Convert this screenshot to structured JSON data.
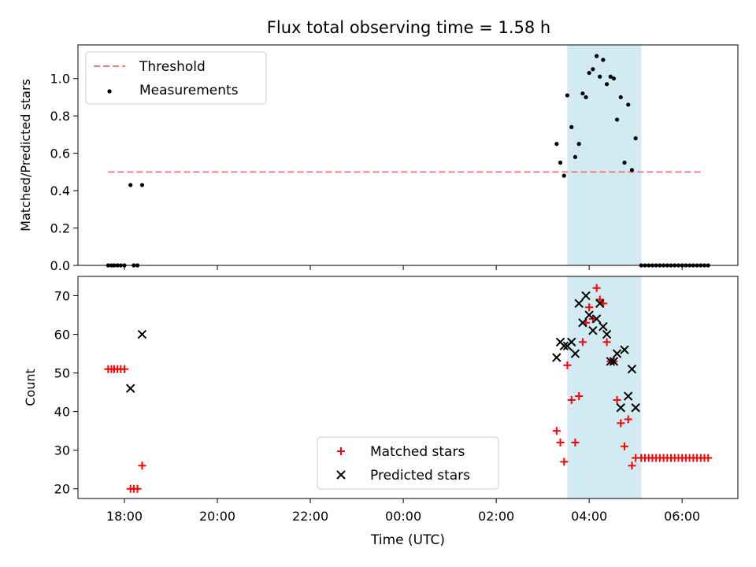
{
  "figure": {
    "title": "Flux total observing time = 1.58 h"
  },
  "chart_data": [
    {
      "type": "scatter",
      "panel": "top",
      "ylabel": "Matched/Predicted stars",
      "ylim": [
        0,
        1.18
      ],
      "yticks": [
        0.0,
        0.2,
        0.4,
        0.6,
        0.8,
        1.0
      ],
      "ytick_labels": [
        "0.0",
        "0.2",
        "0.4",
        "0.6",
        "0.8",
        "1.0"
      ],
      "xlim_hours": [
        17.0,
        31.2
      ],
      "shaded_span_hours": [
        27.53,
        29.12
      ],
      "shade_color": "#add8e6",
      "threshold": {
        "name": "Threshold",
        "value": 0.5,
        "x_range_hours": [
          17.65,
          30.45
        ],
        "color": "#f08080",
        "style": "dashed"
      },
      "legend": {
        "placement": "upper-left",
        "entries": [
          "Threshold",
          "Measurements"
        ]
      },
      "series": [
        {
          "name": "Measurements",
          "color": "#000000",
          "marker": "dot",
          "points": [
            [
              17.65,
              0.0
            ],
            [
              17.72,
              0.0
            ],
            [
              17.78,
              0.0
            ],
            [
              17.85,
              0.0
            ],
            [
              17.92,
              0.0
            ],
            [
              18.0,
              0.0
            ],
            [
              18.13,
              0.43
            ],
            [
              18.2,
              0.0
            ],
            [
              18.28,
              0.0
            ],
            [
              18.38,
              0.43
            ],
            [
              27.3,
              0.65
            ],
            [
              27.38,
              0.55
            ],
            [
              27.46,
              0.48
            ],
            [
              27.53,
              0.91
            ],
            [
              27.62,
              0.74
            ],
            [
              27.7,
              0.58
            ],
            [
              27.78,
              0.65
            ],
            [
              27.86,
              0.92
            ],
            [
              27.93,
              0.9
            ],
            [
              28.0,
              1.03
            ],
            [
              28.08,
              1.05
            ],
            [
              28.16,
              1.12
            ],
            [
              28.23,
              1.01
            ],
            [
              28.3,
              1.1
            ],
            [
              28.38,
              0.97
            ],
            [
              28.46,
              1.01
            ],
            [
              28.53,
              1.0
            ],
            [
              28.6,
              0.78
            ],
            [
              28.68,
              0.9
            ],
            [
              28.76,
              0.55
            ],
            [
              28.84,
              0.86
            ],
            [
              28.92,
              0.51
            ],
            [
              29.0,
              0.68
            ],
            [
              29.12,
              0.0
            ],
            [
              29.2,
              0.0
            ],
            [
              29.28,
              0.0
            ],
            [
              29.36,
              0.0
            ],
            [
              29.44,
              0.0
            ],
            [
              29.52,
              0.0
            ],
            [
              29.6,
              0.0
            ],
            [
              29.68,
              0.0
            ],
            [
              29.76,
              0.0
            ],
            [
              29.84,
              0.0
            ],
            [
              29.92,
              0.0
            ],
            [
              30.0,
              0.0
            ],
            [
              30.08,
              0.0
            ],
            [
              30.16,
              0.0
            ],
            [
              30.24,
              0.0
            ],
            [
              30.32,
              0.0
            ],
            [
              30.4,
              0.0
            ],
            [
              30.48,
              0.0
            ],
            [
              30.56,
              0.0
            ]
          ]
        }
      ]
    },
    {
      "type": "scatter",
      "panel": "bottom",
      "xlabel": "Time (UTC)",
      "ylabel": "Count",
      "ylim": [
        17.5,
        75
      ],
      "yticks": [
        20,
        30,
        40,
        50,
        60,
        70
      ],
      "ytick_labels": [
        "20",
        "30",
        "40",
        "50",
        "60",
        "70"
      ],
      "xlim_hours": [
        17.0,
        31.2
      ],
      "xticks_hours": [
        18,
        20,
        22,
        24,
        26,
        28,
        30
      ],
      "xtick_labels": [
        "18:00",
        "20:00",
        "22:00",
        "00:00",
        "02:00",
        "04:00",
        "06:00"
      ],
      "shaded_span_hours": [
        27.53,
        29.12
      ],
      "shade_color": "#add8e6",
      "legend": {
        "placement": "lower-center",
        "entries": [
          "Matched stars",
          "Predicted stars"
        ]
      },
      "series": [
        {
          "name": "Matched stars",
          "color": "#ff0000",
          "marker": "plus",
          "points": [
            [
              17.65,
              51
            ],
            [
              17.72,
              51
            ],
            [
              17.78,
              51
            ],
            [
              17.85,
              51
            ],
            [
              17.92,
              51
            ],
            [
              18.0,
              51
            ],
            [
              18.13,
              20
            ],
            [
              18.2,
              20
            ],
            [
              18.28,
              20
            ],
            [
              18.38,
              26
            ],
            [
              27.3,
              35
            ],
            [
              27.38,
              32
            ],
            [
              27.46,
              27
            ],
            [
              27.53,
              52
            ],
            [
              27.62,
              43
            ],
            [
              27.7,
              32
            ],
            [
              27.78,
              44
            ],
            [
              27.86,
              58
            ],
            [
              27.93,
              63
            ],
            [
              28.0,
              67
            ],
            [
              28.08,
              64
            ],
            [
              28.16,
              72
            ],
            [
              28.23,
              69
            ],
            [
              28.3,
              68
            ],
            [
              28.38,
              58
            ],
            [
              28.46,
              53
            ],
            [
              28.53,
              53
            ],
            [
              28.6,
              43
            ],
            [
              28.68,
              37
            ],
            [
              28.76,
              31
            ],
            [
              28.84,
              38
            ],
            [
              28.92,
              26
            ],
            [
              29.0,
              28
            ],
            [
              29.12,
              28
            ],
            [
              29.2,
              28
            ],
            [
              29.28,
              28
            ],
            [
              29.36,
              28
            ],
            [
              29.44,
              28
            ],
            [
              29.52,
              28
            ],
            [
              29.6,
              28
            ],
            [
              29.68,
              28
            ],
            [
              29.76,
              28
            ],
            [
              29.84,
              28
            ],
            [
              29.92,
              28
            ],
            [
              30.0,
              28
            ],
            [
              30.08,
              28
            ],
            [
              30.16,
              28
            ],
            [
              30.24,
              28
            ],
            [
              30.32,
              28
            ],
            [
              30.4,
              28
            ],
            [
              30.48,
              28
            ],
            [
              30.56,
              28
            ]
          ]
        },
        {
          "name": "Predicted stars",
          "color": "#000000",
          "marker": "x",
          "points": [
            [
              18.13,
              46
            ],
            [
              18.38,
              60
            ],
            [
              27.3,
              54
            ],
            [
              27.38,
              58
            ],
            [
              27.46,
              57
            ],
            [
              27.53,
              57
            ],
            [
              27.62,
              58
            ],
            [
              27.7,
              55
            ],
            [
              27.78,
              68
            ],
            [
              27.86,
              63
            ],
            [
              27.93,
              70
            ],
            [
              28.0,
              65
            ],
            [
              28.08,
              61
            ],
            [
              28.16,
              64
            ],
            [
              28.23,
              68
            ],
            [
              28.3,
              62
            ],
            [
              28.38,
              60
            ],
            [
              28.46,
              53
            ],
            [
              28.53,
              53
            ],
            [
              28.6,
              55
            ],
            [
              28.68,
              41
            ],
            [
              28.76,
              56
            ],
            [
              28.84,
              44
            ],
            [
              28.92,
              51
            ],
            [
              29.0,
              41
            ]
          ]
        }
      ]
    }
  ]
}
